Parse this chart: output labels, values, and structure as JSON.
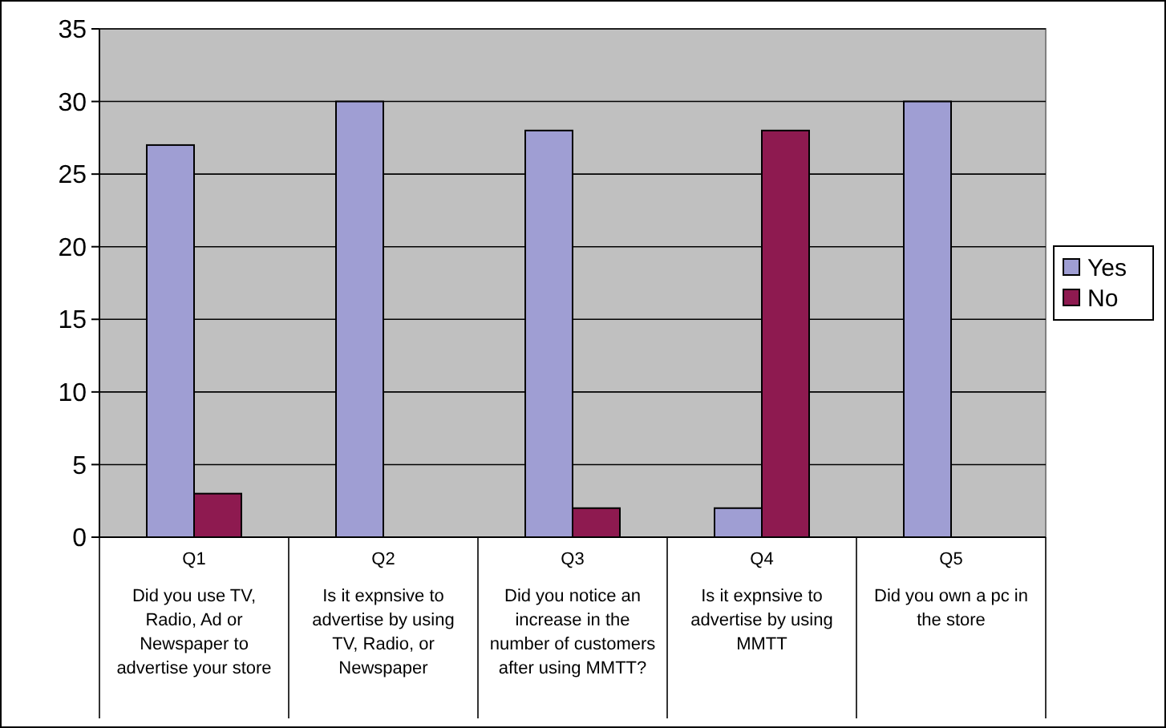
{
  "chart_data": {
    "type": "bar",
    "categories": [
      "Q1\nDid you use TV,\nRadio, Ad or\nNewspaper to\nadvertise your store",
      "Q2\nIs it expnsive to\nadvertise by using\nTV, Radio, or\nNewspaper",
      "Q3\nDid you notice an\nincrease in the\nnumber of customers\nafter using MMTT?",
      "Q4\nIs it expnsive to\nadvertise by using\nMMTT",
      "Q5\nDid you own a pc in\nthe store"
    ],
    "series": [
      {
        "name": "Yes",
        "color": "#9f9ed3",
        "values": [
          27,
          30,
          28,
          2,
          30
        ]
      },
      {
        "name": "No",
        "color": "#8e1a50",
        "values": [
          3,
          0,
          2,
          28,
          0
        ]
      }
    ],
    "ylim": [
      0,
      35
    ],
    "yticks": [
      0,
      5,
      10,
      15,
      20,
      25,
      30,
      35
    ],
    "grid": "y",
    "legend": "right"
  }
}
